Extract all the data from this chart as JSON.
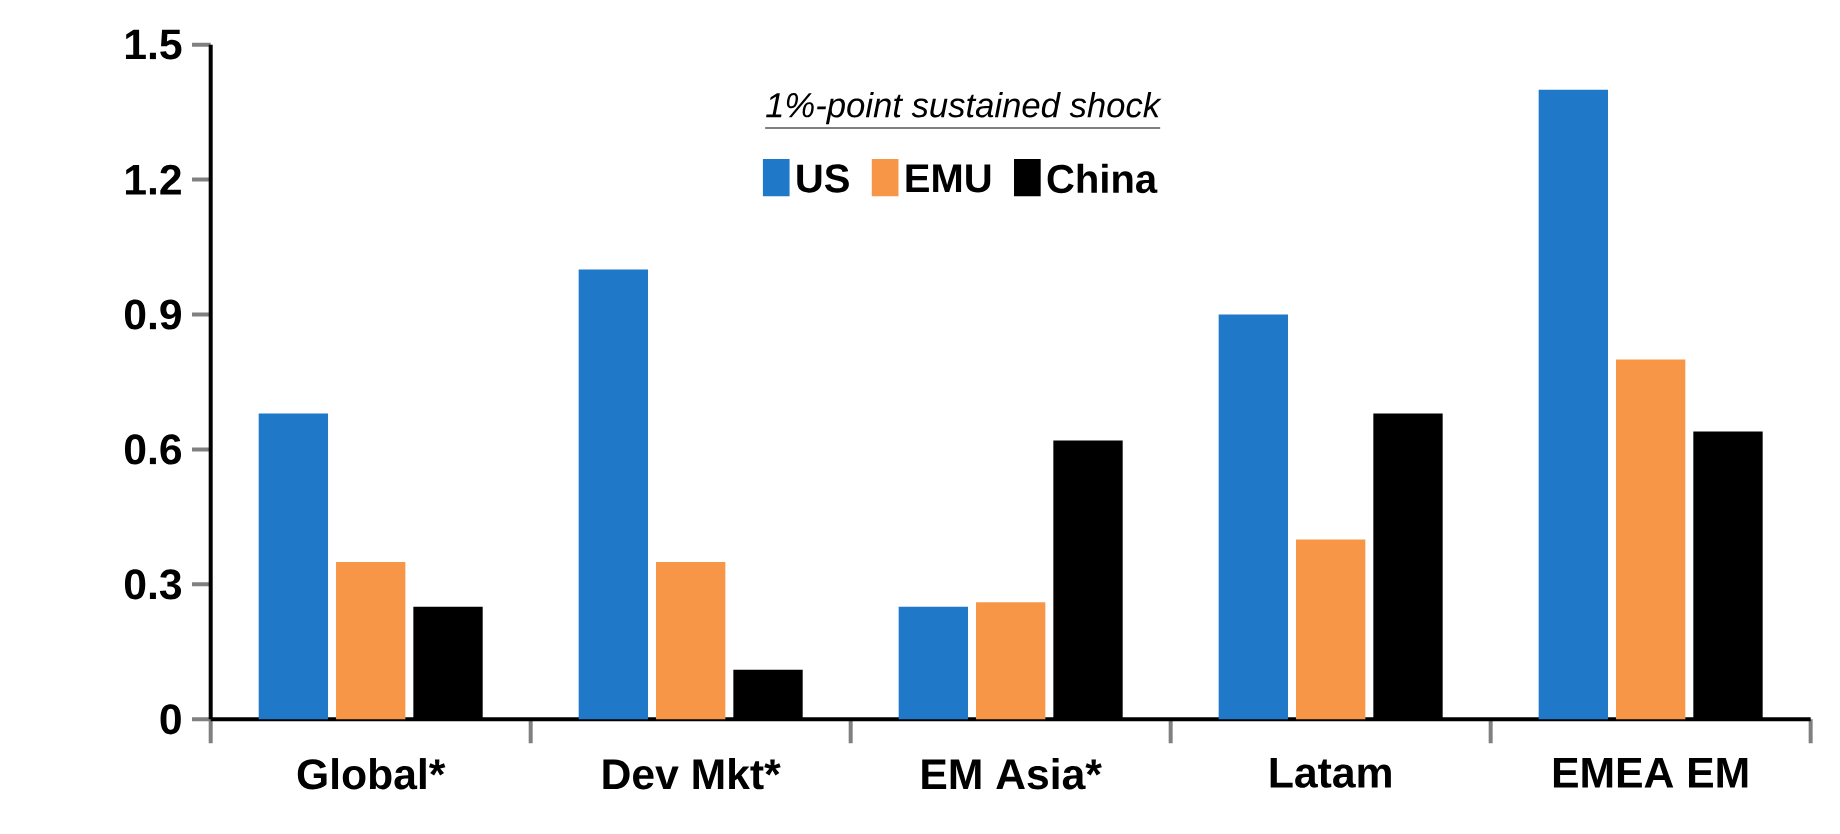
{
  "chart_data": {
    "type": "bar",
    "legend_title": "1%-point sustained shock",
    "categories": [
      "Global*",
      "Dev Mkt*",
      "EM Asia*",
      "Latam",
      "EMEA EM"
    ],
    "series": [
      {
        "name": "US",
        "color": "#1f78c8",
        "values": [
          0.68,
          1.0,
          0.25,
          0.9,
          1.4
        ]
      },
      {
        "name": "EMU",
        "color": "#f79646",
        "values": [
          0.35,
          0.35,
          0.26,
          0.4,
          0.8
        ]
      },
      {
        "name": "China",
        "color": "#000000",
        "values": [
          0.25,
          0.11,
          0.62,
          0.68,
          0.64
        ]
      }
    ],
    "ylim": [
      0,
      1.5
    ],
    "yticks": [
      0,
      0.3,
      0.6,
      0.9,
      1.2,
      1.5
    ],
    "grid": false,
    "legend": "top"
  }
}
